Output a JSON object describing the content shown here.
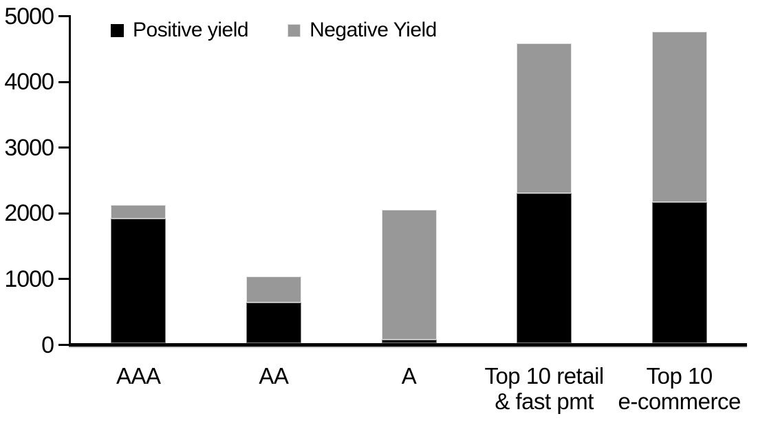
{
  "chart_data": {
    "type": "bar",
    "stacked": true,
    "title": "",
    "xlabel": "",
    "ylabel": "",
    "categories": [
      "AAA",
      "AA",
      "A",
      "Top 10 retail & fast pmt",
      "Top 10 e-commerce"
    ],
    "category_label_lines": [
      [
        "AAA"
      ],
      [
        "AA"
      ],
      [
        "A"
      ],
      [
        "Top 10 retail",
        "& fast pmt"
      ],
      [
        "Top 10",
        "e-commerce"
      ]
    ],
    "series": [
      {
        "name": "Positive yield",
        "color": "#000000",
        "values": [
          1890,
          620,
          50,
          2280,
          2140
        ]
      },
      {
        "name": "Negative Yield",
        "color": "#989898",
        "values": [
          210,
          390,
          1980,
          2280,
          2600
        ]
      }
    ],
    "totals": [
      2100,
      1010,
      2030,
      4560,
      4740
    ],
    "ylim": [
      0,
      5000
    ],
    "yticks": [
      0,
      1000,
      2000,
      3000,
      4000,
      5000
    ],
    "grid": false,
    "legend_position": "top"
  },
  "colors": {
    "positive": "#000000",
    "negative": "#989898",
    "axis": "#000000",
    "background": "#ffffff"
  }
}
